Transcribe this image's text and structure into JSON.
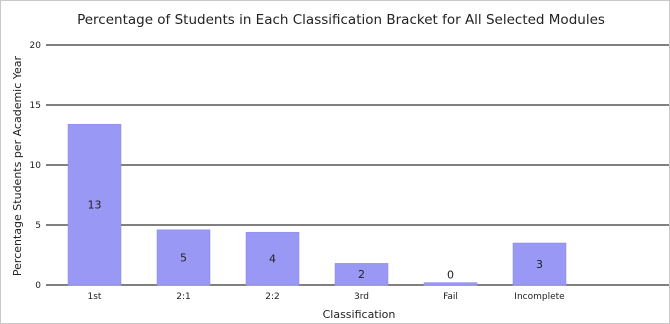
{
  "chart_data": {
    "type": "bar",
    "title": "Percentage of Students in Each Classification Bracket for All Selected Modules",
    "xlabel": "Classification",
    "ylabel": "Percentage Students per Academic Year",
    "categories": [
      "1st",
      "2:1",
      "2:2",
      "3rd",
      "Fail",
      "Incomplete"
    ],
    "values": [
      13.4,
      4.6,
      4.4,
      1.8,
      0.2,
      3.5
    ],
    "data_labels": [
      "13",
      "5",
      "4",
      "2",
      "0",
      "3"
    ],
    "ylim": [
      0,
      20
    ],
    "yticks": [
      0,
      5,
      10,
      15,
      20
    ],
    "grid": true,
    "legend": "none",
    "colors": {
      "bar": "#9999f5",
      "bar_edge": "#8585e8",
      "grid": "#000000"
    }
  }
}
